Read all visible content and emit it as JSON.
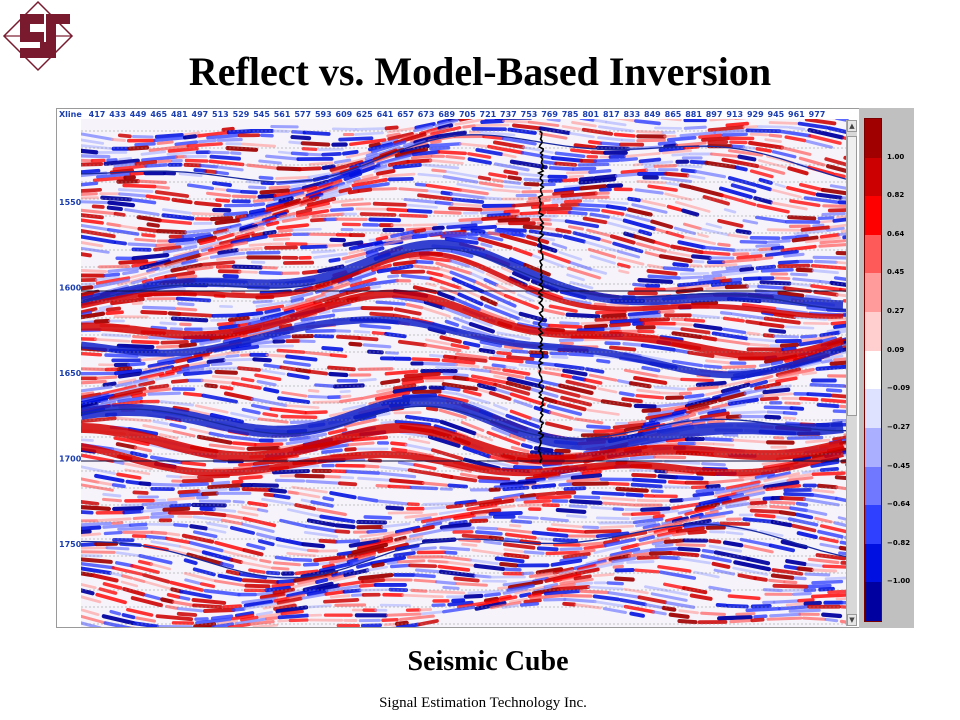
{
  "header": {
    "title": "Reflect vs. Model-Based Inversion",
    "logo_icon": "company-logo-icon",
    "logo_color": "#7a1a2e"
  },
  "subtitle": "Seismic Cube",
  "footer": "Signal Estimation Technology Inc.",
  "chart_data": {
    "type": "heatmap",
    "title": "",
    "xaxis_label": "Xline",
    "x_ticks": [
      417,
      433,
      449,
      465,
      481,
      497,
      513,
      529,
      545,
      561,
      577,
      593,
      609,
      625,
      641,
      657,
      673,
      689,
      705,
      721,
      737,
      753,
      769,
      785,
      801,
      817,
      833,
      849,
      865,
      881,
      897,
      913,
      929,
      945,
      961,
      977
    ],
    "y_ticks": [
      1550,
      1600,
      1650,
      1700,
      1750
    ],
    "colorbar": {
      "labels": [
        "1.00",
        "0.82",
        "0.64",
        "0.45",
        "0.27",
        "0.09",
        "-0.09",
        "-0.27",
        "-0.45",
        "-0.64",
        "-0.82",
        "-1.00"
      ],
      "colors": [
        "#a00000",
        "#cc0000",
        "#ff0000",
        "#ff5a5a",
        "#ff9b9b",
        "#ffcfcf",
        "#ffffff",
        "#dfe2ff",
        "#aab0ff",
        "#7078ff",
        "#3040ff",
        "#0010e0",
        "#0000a0"
      ],
      "range": [
        -1.0,
        1.0
      ]
    },
    "colors": {
      "positive": "#d40000",
      "negative": "#1020c8",
      "horizon_line": "#1a2aa0",
      "well_log": "#000000"
    },
    "grid": "dashed-horizontal",
    "legend_position": "right"
  }
}
